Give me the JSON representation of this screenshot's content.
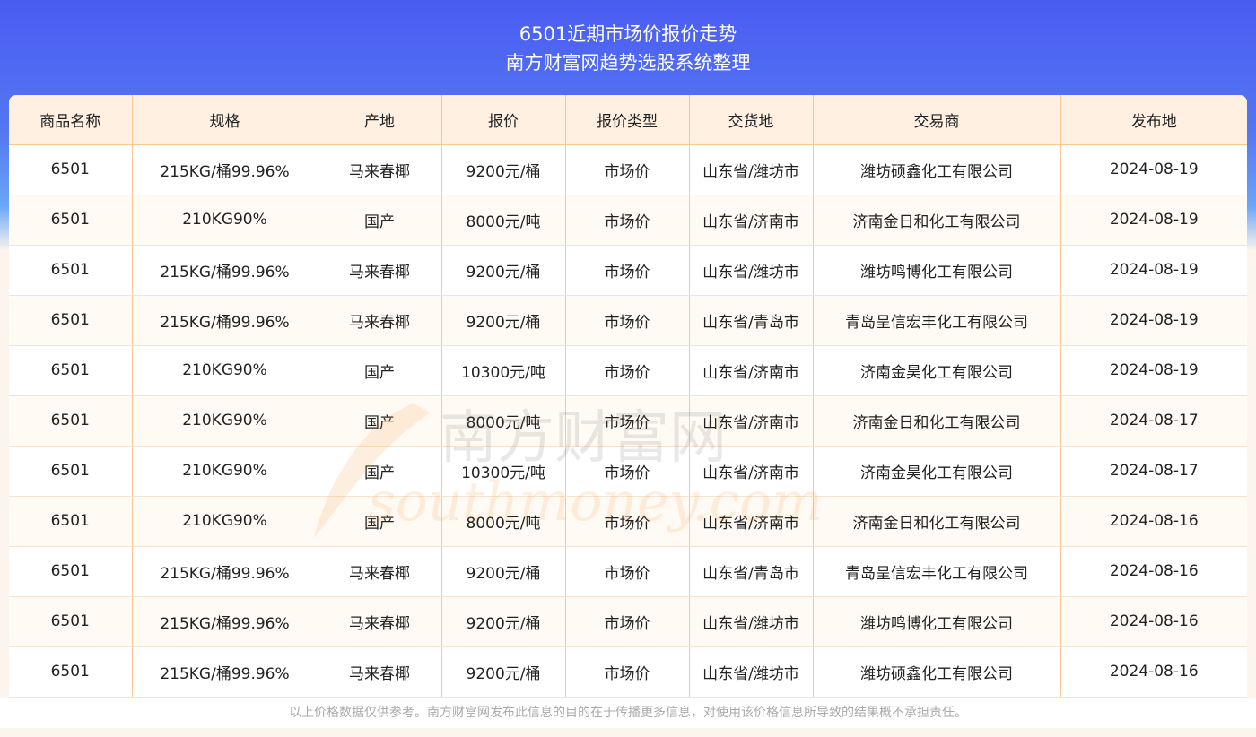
{
  "header": {
    "title": "6501近期市场价报价走势",
    "subtitle": "南方财富网趋势选股系统整理"
  },
  "table": {
    "columns": [
      "商品名称",
      "规格",
      "产地",
      "报价",
      "报价类型",
      "交货地",
      "交易商",
      "发布地"
    ],
    "rows": [
      [
        "6501",
        "215KG/桶99.96%",
        "马来春椰",
        "9200元/桶",
        "市场价",
        "山东省/潍坊市",
        "潍坊硕鑫化工有限公司",
        "2024-08-19"
      ],
      [
        "6501",
        "210KG90%",
        "国产",
        "8000元/吨",
        "市场价",
        "山东省/济南市",
        "济南金日和化工有限公司",
        "2024-08-19"
      ],
      [
        "6501",
        "215KG/桶99.96%",
        "马来春椰",
        "9200元/桶",
        "市场价",
        "山东省/潍坊市",
        "潍坊鸣博化工有限公司",
        "2024-08-19"
      ],
      [
        "6501",
        "215KG/桶99.96%",
        "马来春椰",
        "9200元/桶",
        "市场价",
        "山东省/青岛市",
        "青岛呈信宏丰化工有限公司",
        "2024-08-19"
      ],
      [
        "6501",
        "210KG90%",
        "国产",
        "10300元/吨",
        "市场价",
        "山东省/济南市",
        "济南金昊化工有限公司",
        "2024-08-19"
      ],
      [
        "6501",
        "210KG90%",
        "国产",
        "8000元/吨",
        "市场价",
        "山东省/济南市",
        "济南金日和化工有限公司",
        "2024-08-17"
      ],
      [
        "6501",
        "210KG90%",
        "国产",
        "10300元/吨",
        "市场价",
        "山东省/济南市",
        "济南金昊化工有限公司",
        "2024-08-17"
      ],
      [
        "6501",
        "210KG90%",
        "国产",
        "8000元/吨",
        "市场价",
        "山东省/济南市",
        "济南金日和化工有限公司",
        "2024-08-16"
      ],
      [
        "6501",
        "215KG/桶99.96%",
        "马来春椰",
        "9200元/桶",
        "市场价",
        "山东省/青岛市",
        "青岛呈信宏丰化工有限公司",
        "2024-08-16"
      ],
      [
        "6501",
        "215KG/桶99.96%",
        "马来春椰",
        "9200元/桶",
        "市场价",
        "山东省/潍坊市",
        "潍坊鸣博化工有限公司",
        "2024-08-16"
      ],
      [
        "6501",
        "215KG/桶99.96%",
        "马来春椰",
        "9200元/桶",
        "市场价",
        "山东省/潍坊市",
        "潍坊硕鑫化工有限公司",
        "2024-08-16"
      ]
    ]
  },
  "footer": {
    "disclaimer": "以上价格数据仅供参考。南方财富网发布此信息的目的在于传播更多信息，对使用该价格信息所导致的结果概不承担责任。"
  },
  "watermark": {
    "text_cn": "南方财富网",
    "text_en": "southmoney.com"
  }
}
